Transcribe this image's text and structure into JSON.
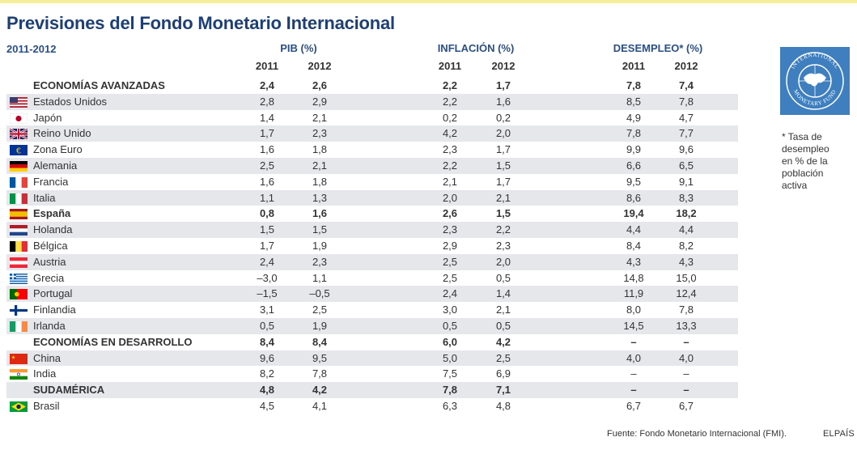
{
  "title": "Previsiones del Fondo Monetario Internacional",
  "period": "2011-2012",
  "groups": {
    "pib": "PIB (%)",
    "inflacion": "INFLACIÓN (%)",
    "desempleo": "DESEMPLEO* (%)"
  },
  "years": [
    "2011",
    "2012"
  ],
  "rows": [
    {
      "name": "ECONOMÍAS AVANZADAS",
      "flag": "",
      "bold": true,
      "v": [
        "2,4",
        "2,6",
        "2,2",
        "1,7",
        "7,8",
        "7,4"
      ]
    },
    {
      "name": "Estados Unidos",
      "flag": "us-flag-icon",
      "bold": false,
      "v": [
        "2,8",
        "2,9",
        "2,2",
        "1,6",
        "8,5",
        "7,8"
      ]
    },
    {
      "name": "Japón",
      "flag": "japan-flag-icon",
      "bold": false,
      "v": [
        "1,4",
        "2,1",
        "0,2",
        "0,2",
        "4,9",
        "4,7"
      ]
    },
    {
      "name": "Reino Unido",
      "flag": "uk-flag-icon",
      "bold": false,
      "v": [
        "1,7",
        "2,3",
        "4,2",
        "2,0",
        "7,8",
        "7,7"
      ]
    },
    {
      "name": "Zona Euro",
      "flag": "euro-flag-icon",
      "bold": false,
      "v": [
        "1,6",
        "1,8",
        "2,3",
        "1,7",
        "9,9",
        "9,6"
      ]
    },
    {
      "name": "Alemania",
      "flag": "germany-flag-icon",
      "bold": false,
      "v": [
        "2,5",
        "2,1",
        "2,2",
        "1,5",
        "6,6",
        "6,5"
      ]
    },
    {
      "name": "Francia",
      "flag": "france-flag-icon",
      "bold": false,
      "v": [
        "1,6",
        "1,8",
        "2,1",
        "1,7",
        "9,5",
        "9,1"
      ]
    },
    {
      "name": "Italia",
      "flag": "italy-flag-icon",
      "bold": false,
      "v": [
        "1,1",
        "1,3",
        "2,0",
        "2,1",
        "8,6",
        "8,3"
      ]
    },
    {
      "name": "España",
      "flag": "spain-flag-icon",
      "bold": true,
      "v": [
        "0,8",
        "1,6",
        "2,6",
        "1,5",
        "19,4",
        "18,2"
      ]
    },
    {
      "name": "Holanda",
      "flag": "netherlands-flag-icon",
      "bold": false,
      "v": [
        "1,5",
        "1,5",
        "2,3",
        "2,2",
        "4,4",
        "4,4"
      ]
    },
    {
      "name": "Bélgica",
      "flag": "belgium-flag-icon",
      "bold": false,
      "v": [
        "1,7",
        "1,9",
        "2,9",
        "2,3",
        "8,4",
        "8,2"
      ]
    },
    {
      "name": "Austria",
      "flag": "austria-flag-icon",
      "bold": false,
      "v": [
        "2,4",
        "2,3",
        "2,5",
        "2,0",
        "4,3",
        "4,3"
      ]
    },
    {
      "name": "Grecia",
      "flag": "greece-flag-icon",
      "bold": false,
      "v": [
        "–3,0",
        "1,1",
        "2,5",
        "0,5",
        "14,8",
        "15,0"
      ]
    },
    {
      "name": "Portugal",
      "flag": "portugal-flag-icon",
      "bold": false,
      "v": [
        "–1,5",
        "–0,5",
        "2,4",
        "1,4",
        "11,9",
        "12,4"
      ]
    },
    {
      "name": "Finlandia",
      "flag": "finland-flag-icon",
      "bold": false,
      "v": [
        "3,1",
        "2,5",
        "3,0",
        "2,1",
        "8,0",
        "7,8"
      ]
    },
    {
      "name": "Irlanda",
      "flag": "ireland-flag-icon",
      "bold": false,
      "v": [
        "0,5",
        "1,9",
        "0,5",
        "0,5",
        "14,5",
        "13,3"
      ]
    },
    {
      "name": "ECONOMÍAS EN DESARROLLO",
      "flag": "",
      "bold": true,
      "v": [
        "8,4",
        "8,4",
        "6,0",
        "4,2",
        "–",
        "–"
      ]
    },
    {
      "name": "China",
      "flag": "china-flag-icon",
      "bold": false,
      "v": [
        "9,6",
        "9,5",
        "5,0",
        "2,5",
        "4,0",
        "4,0"
      ]
    },
    {
      "name": "India",
      "flag": "india-flag-icon",
      "bold": false,
      "v": [
        "8,2",
        "7,8",
        "7,5",
        "6,9",
        "–",
        "–"
      ]
    },
    {
      "name": "SUDAMÉRICA",
      "flag": "",
      "bold": true,
      "v": [
        "4,8",
        "4,2",
        "7,8",
        "7,1",
        "–",
        "–"
      ]
    },
    {
      "name": "Brasil",
      "flag": "brazil-flag-icon",
      "bold": false,
      "v": [
        "4,5",
        "4,1",
        "6,3",
        "4,8",
        "6,7",
        "6,7"
      ]
    }
  ],
  "logo": {
    "icon": "imf-logo-icon",
    "text": "INTERNATIONAL MONETARY FUND",
    "color": "#3f7fbf"
  },
  "note": [
    "* Tasa de",
    "desempleo",
    "en % de la",
    "población",
    "activa"
  ],
  "source": "Fuente: Fondo Monetario Internacional (FMI).",
  "brand": "ELPAÍS",
  "colors": {
    "title": "#1d3f73",
    "header": "#2a4f86",
    "stripe": "#e6e7ea"
  }
}
